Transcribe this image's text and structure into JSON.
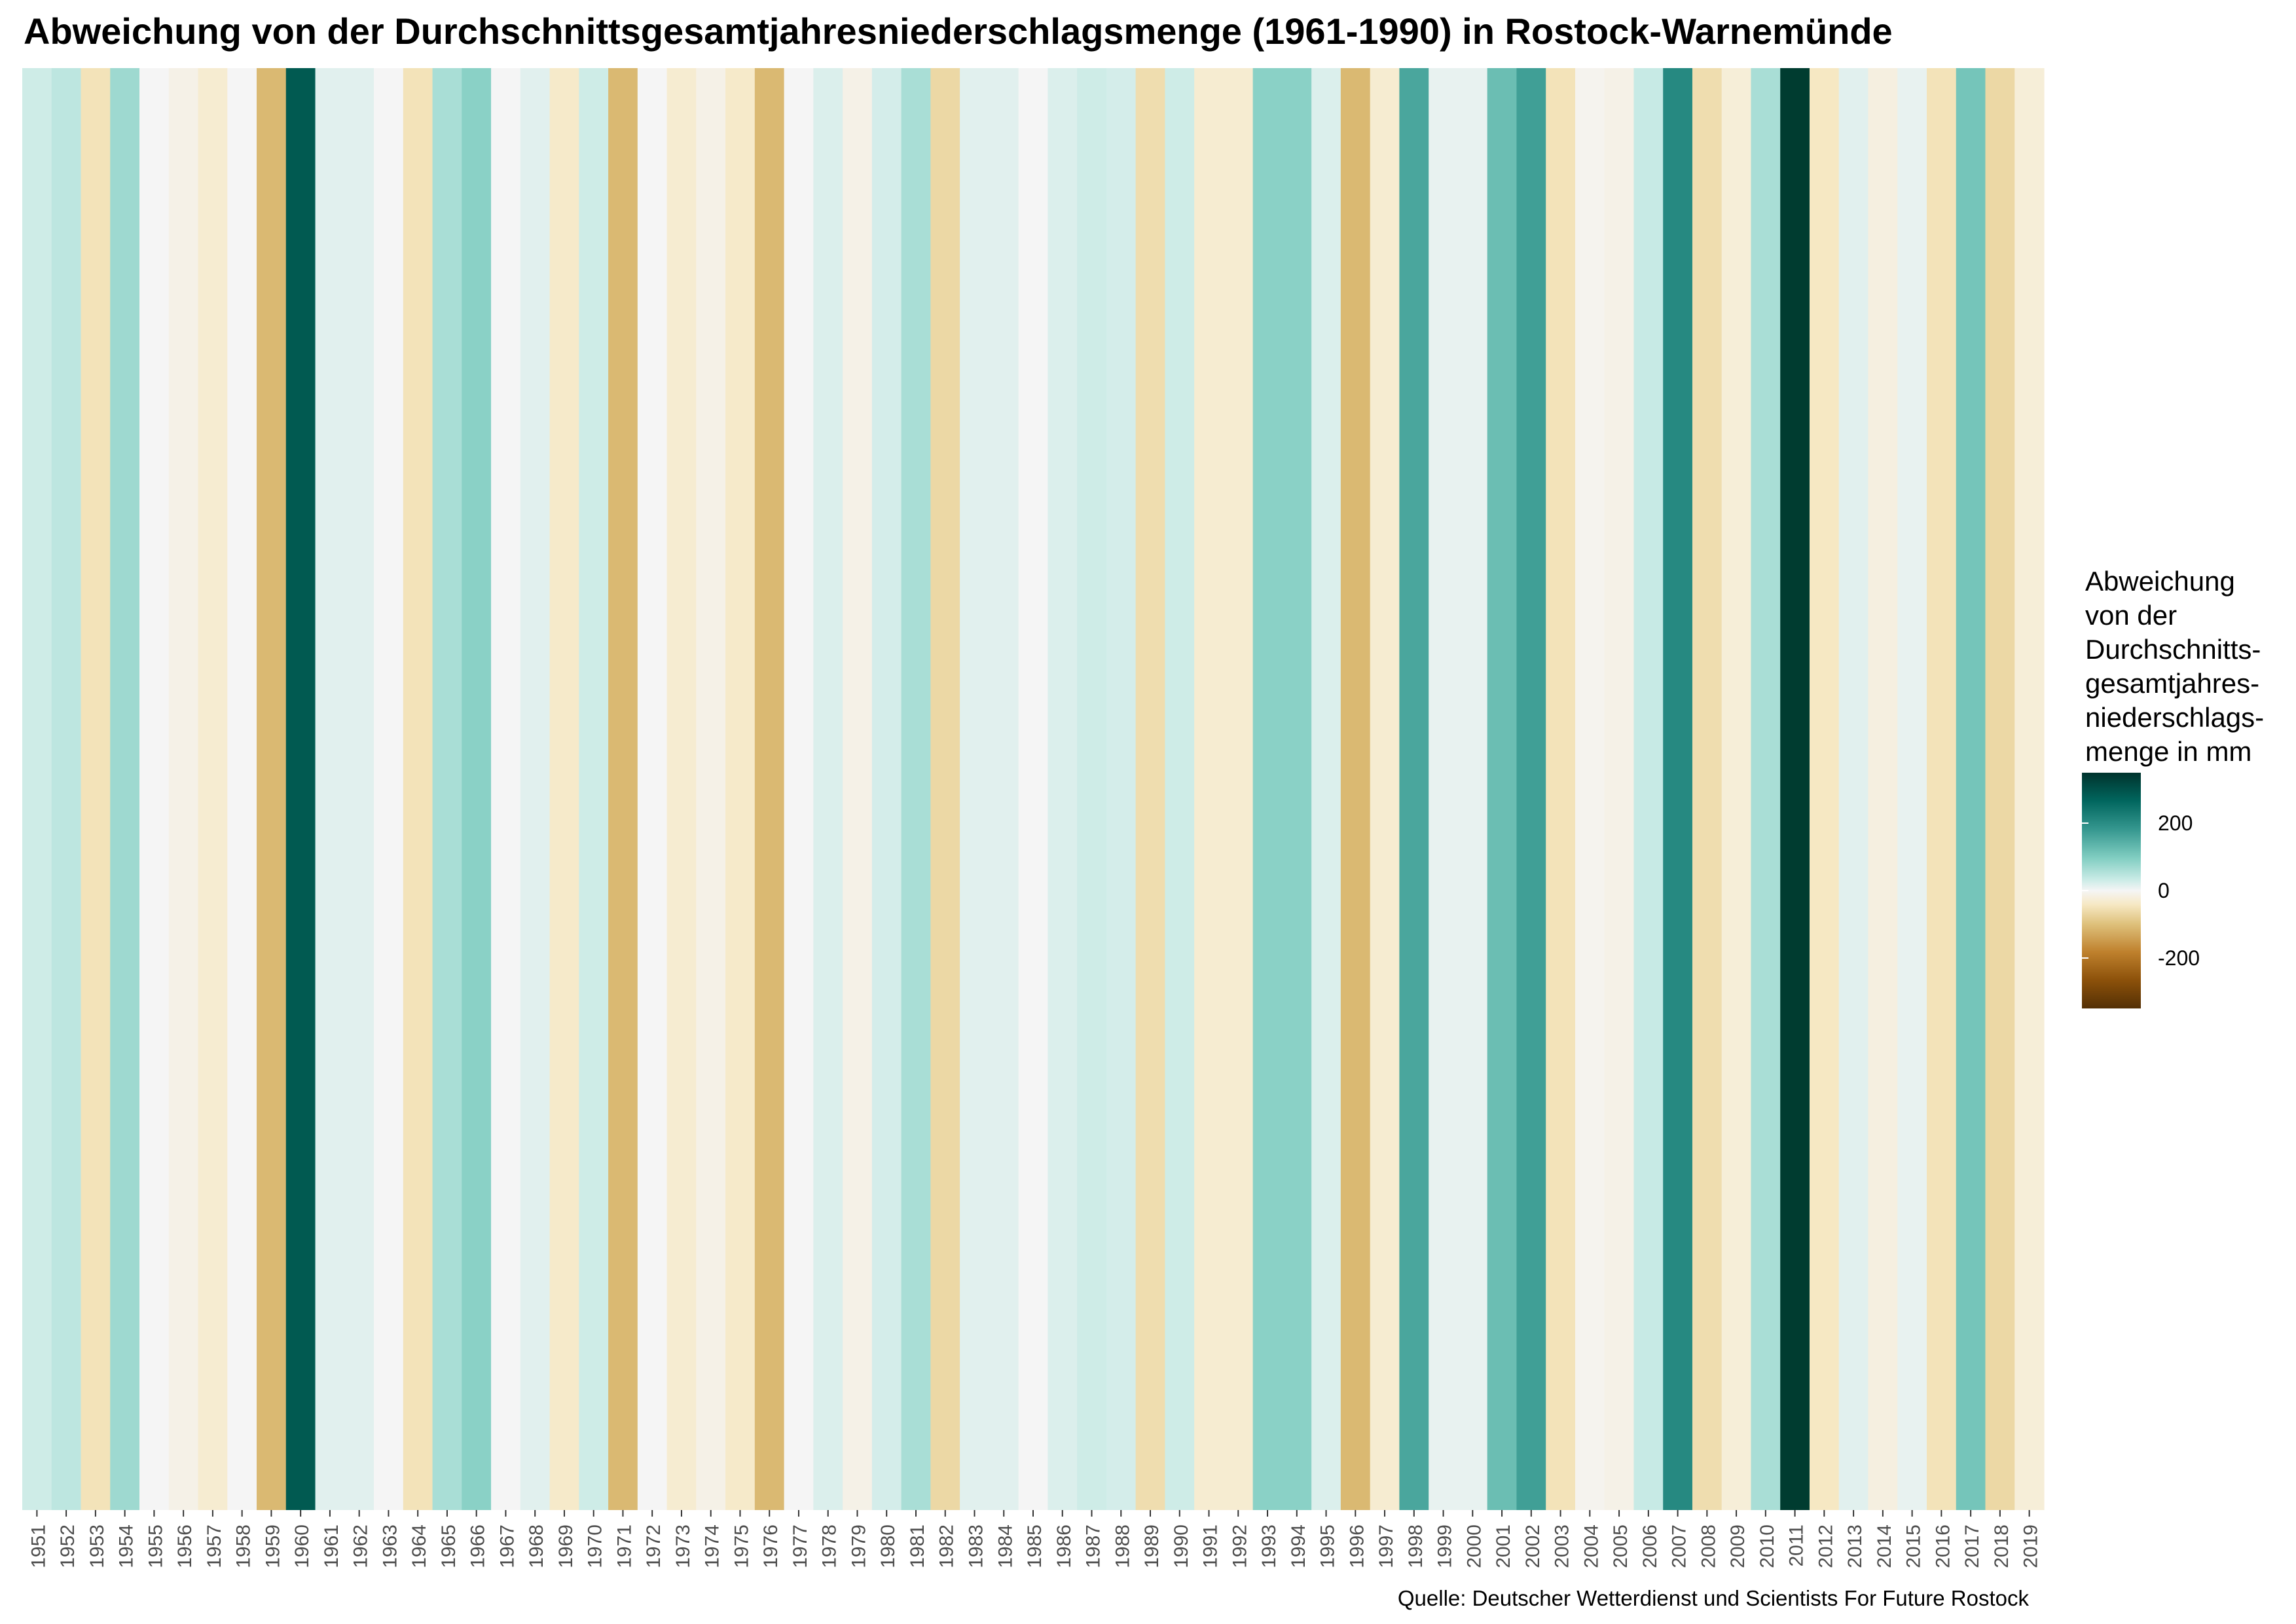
{
  "chart_data": {
    "type": "heatmap",
    "title": "Abweichung von der Durchschnittsgesamtjahresniederschlagsmenge (1961-1990) in Rostock-Warnemünde",
    "x": [
      1951,
      1952,
      1953,
      1954,
      1955,
      1956,
      1957,
      1958,
      1959,
      1960,
      1961,
      1962,
      1963,
      1964,
      1965,
      1966,
      1967,
      1968,
      1969,
      1970,
      1971,
      1972,
      1973,
      1974,
      1975,
      1976,
      1977,
      1978,
      1979,
      1980,
      1981,
      1982,
      1983,
      1984,
      1985,
      1986,
      1987,
      1988,
      1989,
      1990,
      1991,
      1992,
      1993,
      1994,
      1995,
      1996,
      1997,
      1998,
      1999,
      2000,
      2001,
      2002,
      2003,
      2004,
      2005,
      2006,
      2007,
      2008,
      2009,
      2010,
      2011,
      2012,
      2013,
      2014,
      2015,
      2016,
      2017,
      2018,
      2019
    ],
    "values": [
      60,
      80,
      -80,
      110,
      0,
      -20,
      -50,
      0,
      -150,
      300,
      30,
      30,
      0,
      -80,
      100,
      130,
      0,
      30,
      -60,
      60,
      -150,
      0,
      -50,
      -20,
      -60,
      -150,
      0,
      40,
      -20,
      50,
      100,
      -100,
      30,
      30,
      0,
      40,
      60,
      50,
      -90,
      60,
      -50,
      -50,
      130,
      130,
      40,
      -150,
      -50,
      190,
      20,
      20,
      160,
      200,
      -80,
      -10,
      -20,
      70,
      230,
      -90,
      -40,
      100,
      350,
      -70,
      30,
      -30,
      20,
      -80,
      150,
      -100,
      -40
    ],
    "color_scale": {
      "name": "BrBG",
      "domain": [
        -350,
        350
      ],
      "colors": [
        "#543005",
        "#8c510a",
        "#bf812d",
        "#dfc27d",
        "#f6e8c3",
        "#f5f5f5",
        "#c7eae5",
        "#80cdc1",
        "#35978f",
        "#01665e",
        "#003c30"
      ]
    },
    "legend": {
      "title": "Abweichung\nvon der\nDurchschnitts-\ngesamtjahres-\nniederschlags-\nmenge in mm",
      "ticks": [
        "200",
        "0",
        "-200"
      ],
      "tick_values": [
        200,
        0,
        -200
      ],
      "placement": "right"
    }
  },
  "source": "Quelle: Deutscher Wetterdienst und Scientists For Future Rostock"
}
